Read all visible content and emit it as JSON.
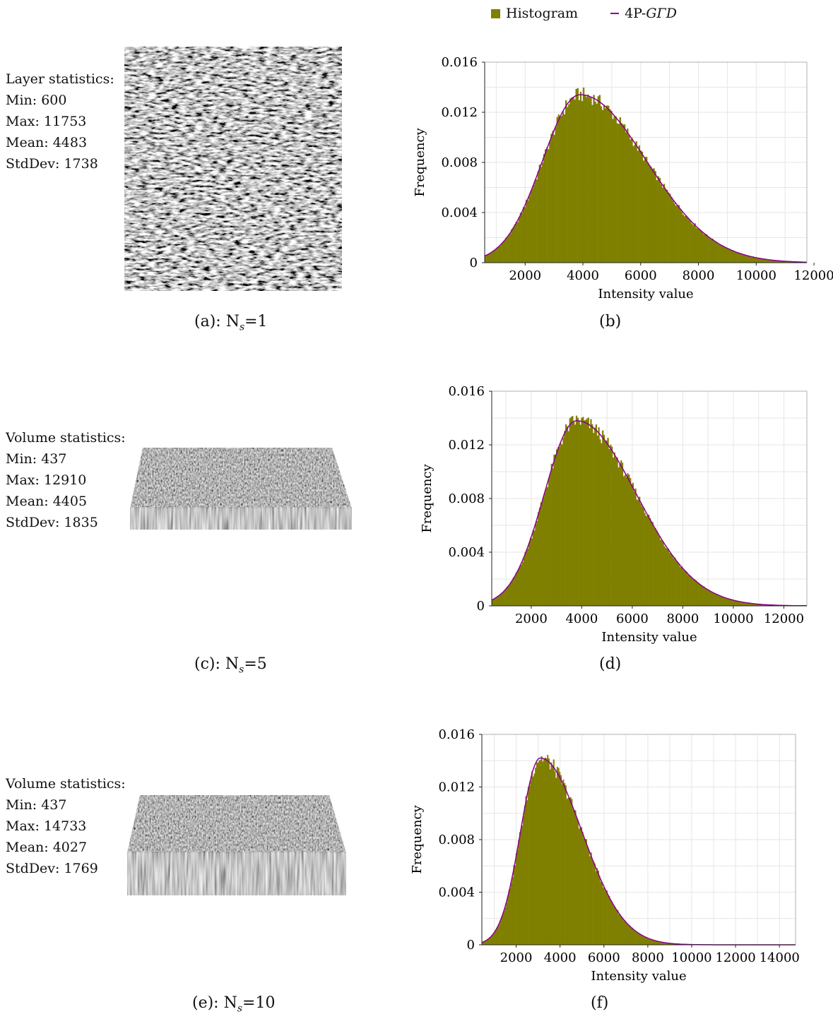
{
  "legend": {
    "histogram": "Histogram",
    "fit_prefix": "4P-",
    "fit_italic": "GΓD"
  },
  "panels": [
    {
      "stats_title": "Layer statistics:",
      "min": "Min: 600",
      "max": "Max: 11753",
      "mean": "Mean: 4483",
      "std": "StdDev: 1738",
      "caption_left": "(a): N",
      "caption_sub": "s",
      "caption_right": "=1",
      "chart_caption": "(b)"
    },
    {
      "stats_title": "Volume statistics:",
      "min": "Min: 437",
      "max": "Max: 12910",
      "mean": "Mean: 4405",
      "std": "StdDev: 1835",
      "caption_left": "(c): N",
      "caption_sub": "s",
      "caption_right": "=5",
      "chart_caption": "(d)"
    },
    {
      "stats_title": "Volume statistics:",
      "min": "Min: 437",
      "max": "Max: 14733",
      "mean": "Mean: 4027",
      "std": "StdDev: 1769",
      "caption_left": "(e): N",
      "caption_sub": "s",
      "caption_right": "=10",
      "chart_caption": "(f)"
    }
  ],
  "colors": {
    "bar": "#7f7f00",
    "fit": "#8b008b",
    "grid": "#e6e6e6"
  },
  "chart_data": [
    {
      "type": "bar",
      "xlabel": "Intensity value",
      "ylabel": "Frequency",
      "xlim": [
        600,
        11753
      ],
      "ylim": [
        0,
        0.016
      ],
      "xticks": [
        2000,
        4000,
        6000,
        8000,
        10000,
        12000
      ],
      "yticks": [
        0,
        0.004,
        0.008,
        0.012,
        0.016
      ],
      "ytick_labels": [
        "0",
        "0.004",
        "0.008",
        "0.012",
        "0.016"
      ],
      "series": [
        {
          "name": "Histogram",
          "kind": "histogram",
          "bins": 220,
          "mode": 3900,
          "peak": 0.0134,
          "sigma_left": 1300,
          "sigma_right": 2300
        },
        {
          "name": "4P-GΓD",
          "kind": "line",
          "mode": 3900,
          "peak": 0.0134,
          "sigma_left": 1300,
          "sigma_right": 2300
        }
      ]
    },
    {
      "type": "bar",
      "xlabel": "Intensity value",
      "ylabel": "Frequency",
      "xlim": [
        437,
        12910
      ],
      "ylim": [
        0,
        0.016
      ],
      "xticks": [
        2000,
        4000,
        6000,
        8000,
        10000,
        12000
      ],
      "yticks": [
        0,
        0.004,
        0.008,
        0.012,
        0.016
      ],
      "ytick_labels": [
        "0",
        "0.004",
        "0.008",
        "0.012",
        "0.016"
      ],
      "series": [
        {
          "name": "Histogram",
          "kind": "histogram",
          "bins": 240,
          "mode": 3800,
          "peak": 0.0138,
          "sigma_left": 1280,
          "sigma_right": 2350
        },
        {
          "name": "4P-GΓD",
          "kind": "line",
          "mode": 3800,
          "peak": 0.0138,
          "sigma_left": 1280,
          "sigma_right": 2350
        }
      ]
    },
    {
      "type": "bar",
      "xlabel": "Intensity value",
      "ylabel": "Frequency",
      "xlim": [
        437,
        14733
      ],
      "ylim": [
        0,
        0.016
      ],
      "xticks": [
        2000,
        4000,
        6000,
        8000,
        10000,
        12000,
        14000
      ],
      "yticks": [
        0,
        0.004,
        0.008,
        0.012,
        0.016
      ],
      "ytick_labels": [
        "0",
        "0.004",
        "0.008",
        "0.012",
        "0.016"
      ],
      "series": [
        {
          "name": "Histogram",
          "kind": "histogram",
          "bins": 260,
          "mode": 3100,
          "peak": 0.0142,
          "sigma_left": 900,
          "sigma_right": 1900
        },
        {
          "name": "4P-GΓD",
          "kind": "line",
          "mode": 3100,
          "peak": 0.0142,
          "sigma_left": 900,
          "sigma_right": 1900
        }
      ]
    }
  ]
}
